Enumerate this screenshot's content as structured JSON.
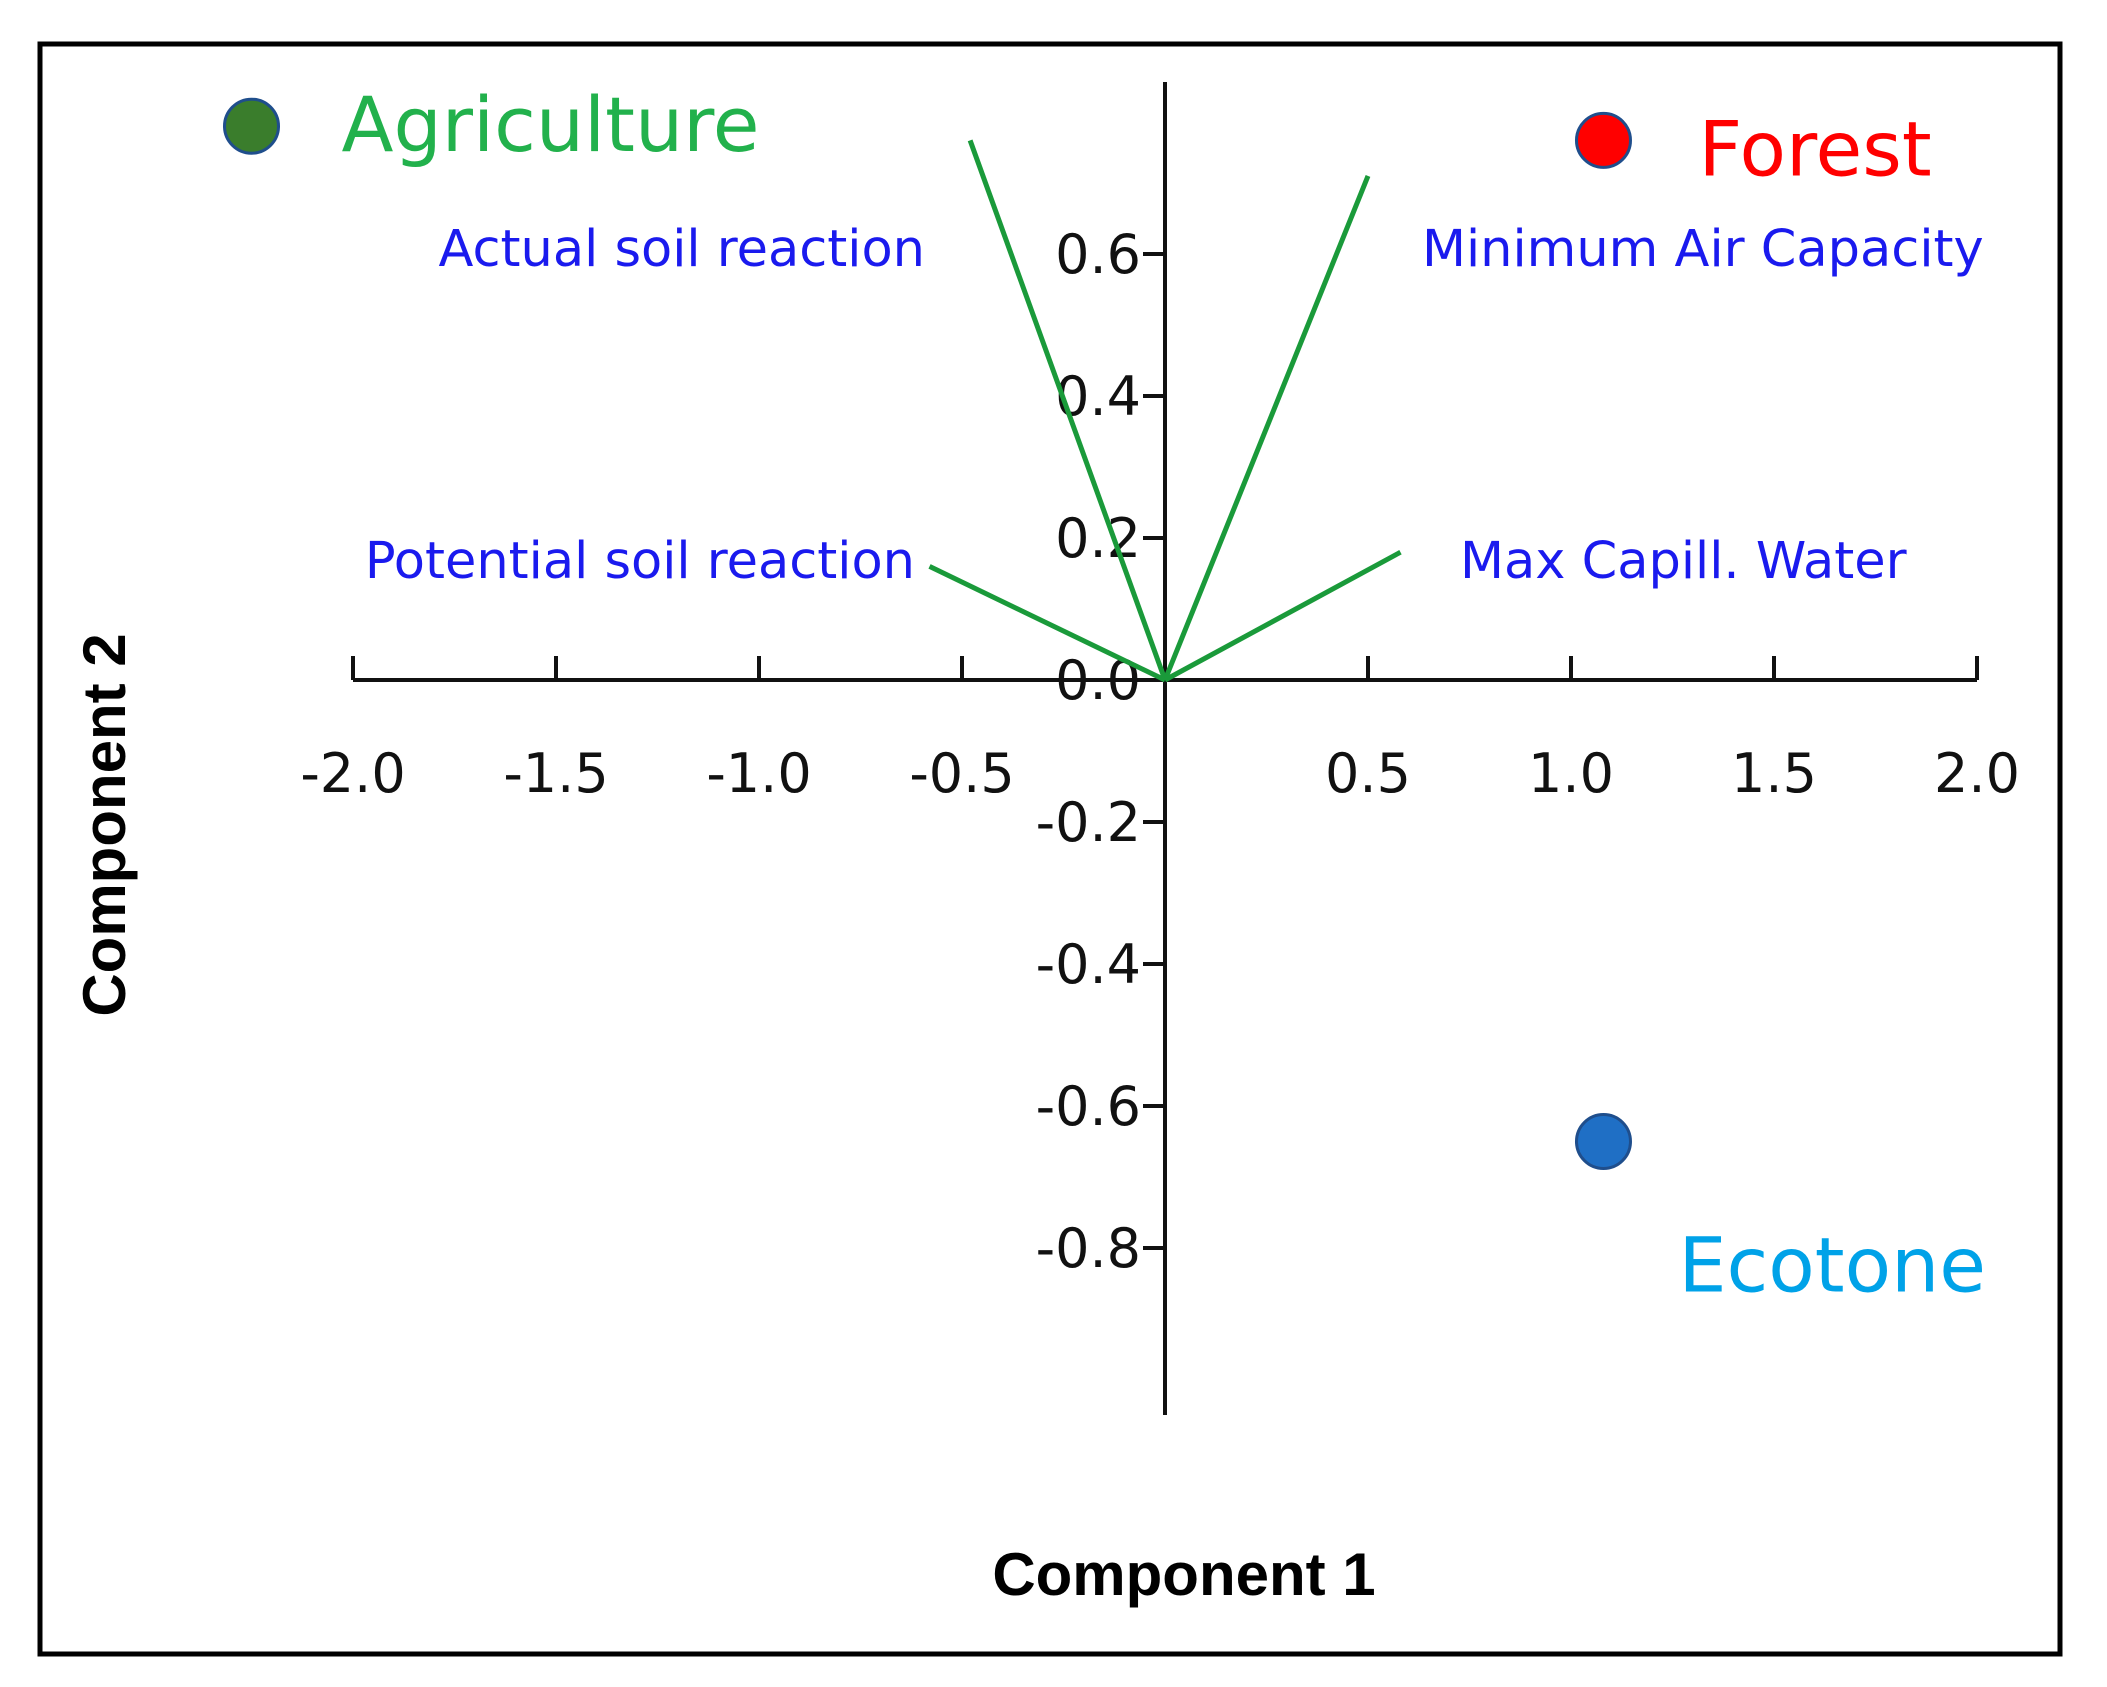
{
  "chart_data": {
    "type": "scatter",
    "subtype": "pca-biplot",
    "xlabel": "Component 1",
    "ylabel": "Component 2",
    "xlim": [
      -2.0,
      2.0
    ],
    "ylim": [
      -1.0,
      0.8
    ],
    "x_ticks": [
      {
        "value": -2.0,
        "label": "-2.0"
      },
      {
        "value": -1.5,
        "label": "-1.5"
      },
      {
        "value": -1.0,
        "label": "-1.0"
      },
      {
        "value": -0.5,
        "label": "-0.5"
      },
      {
        "value": 0.5,
        "label": "0.5"
      },
      {
        "value": 1.0,
        "label": "1.0"
      },
      {
        "value": 1.5,
        "label": "1.5"
      },
      {
        "value": 2.0,
        "label": "2.0"
      }
    ],
    "y_ticks": [
      {
        "value": 0.6,
        "label": "0.6"
      },
      {
        "value": 0.4,
        "label": "0.4"
      },
      {
        "value": 0.2,
        "label": "0.2"
      },
      {
        "value": 0.0,
        "label": "0.0"
      },
      {
        "value": -0.2,
        "label": "-0.2"
      },
      {
        "value": -0.4,
        "label": "-0.4"
      },
      {
        "value": -0.6,
        "label": "-0.6"
      },
      {
        "value": -0.8,
        "label": "-0.8"
      }
    ],
    "loadings": [
      {
        "name": "Actual soil reaction",
        "x": -0.48,
        "y": 0.76,
        "label_anchor": "upper-left"
      },
      {
        "name": "Minimum Air Capacity",
        "x": 0.5,
        "y": 0.71,
        "label_anchor": "upper-right"
      },
      {
        "name": "Potential soil reaction",
        "x": -0.58,
        "y": 0.16,
        "label_anchor": "left"
      },
      {
        "name": "Max Capill. Water",
        "x": 0.58,
        "y": 0.18,
        "label_anchor": "right"
      }
    ],
    "groups": [
      {
        "name": "Agriculture",
        "x": -2.25,
        "y": 0.78,
        "color": "#3a7d2c",
        "label_color": "#22b14c"
      },
      {
        "name": "Forest",
        "x": 1.08,
        "y": 0.76,
        "color": "#ff0000",
        "label_color": "#ff0000"
      },
      {
        "name": "Ecotone",
        "x": 1.08,
        "y": -0.65,
        "color": "#1f6fc5",
        "label_color": "#00a2e8"
      }
    ],
    "colors": {
      "loading_line": "#1a9a3a",
      "loading_label": "#1a1aee",
      "axis": "#111111",
      "frame": "#000000",
      "marker_outline": "#1f4e8c"
    }
  }
}
